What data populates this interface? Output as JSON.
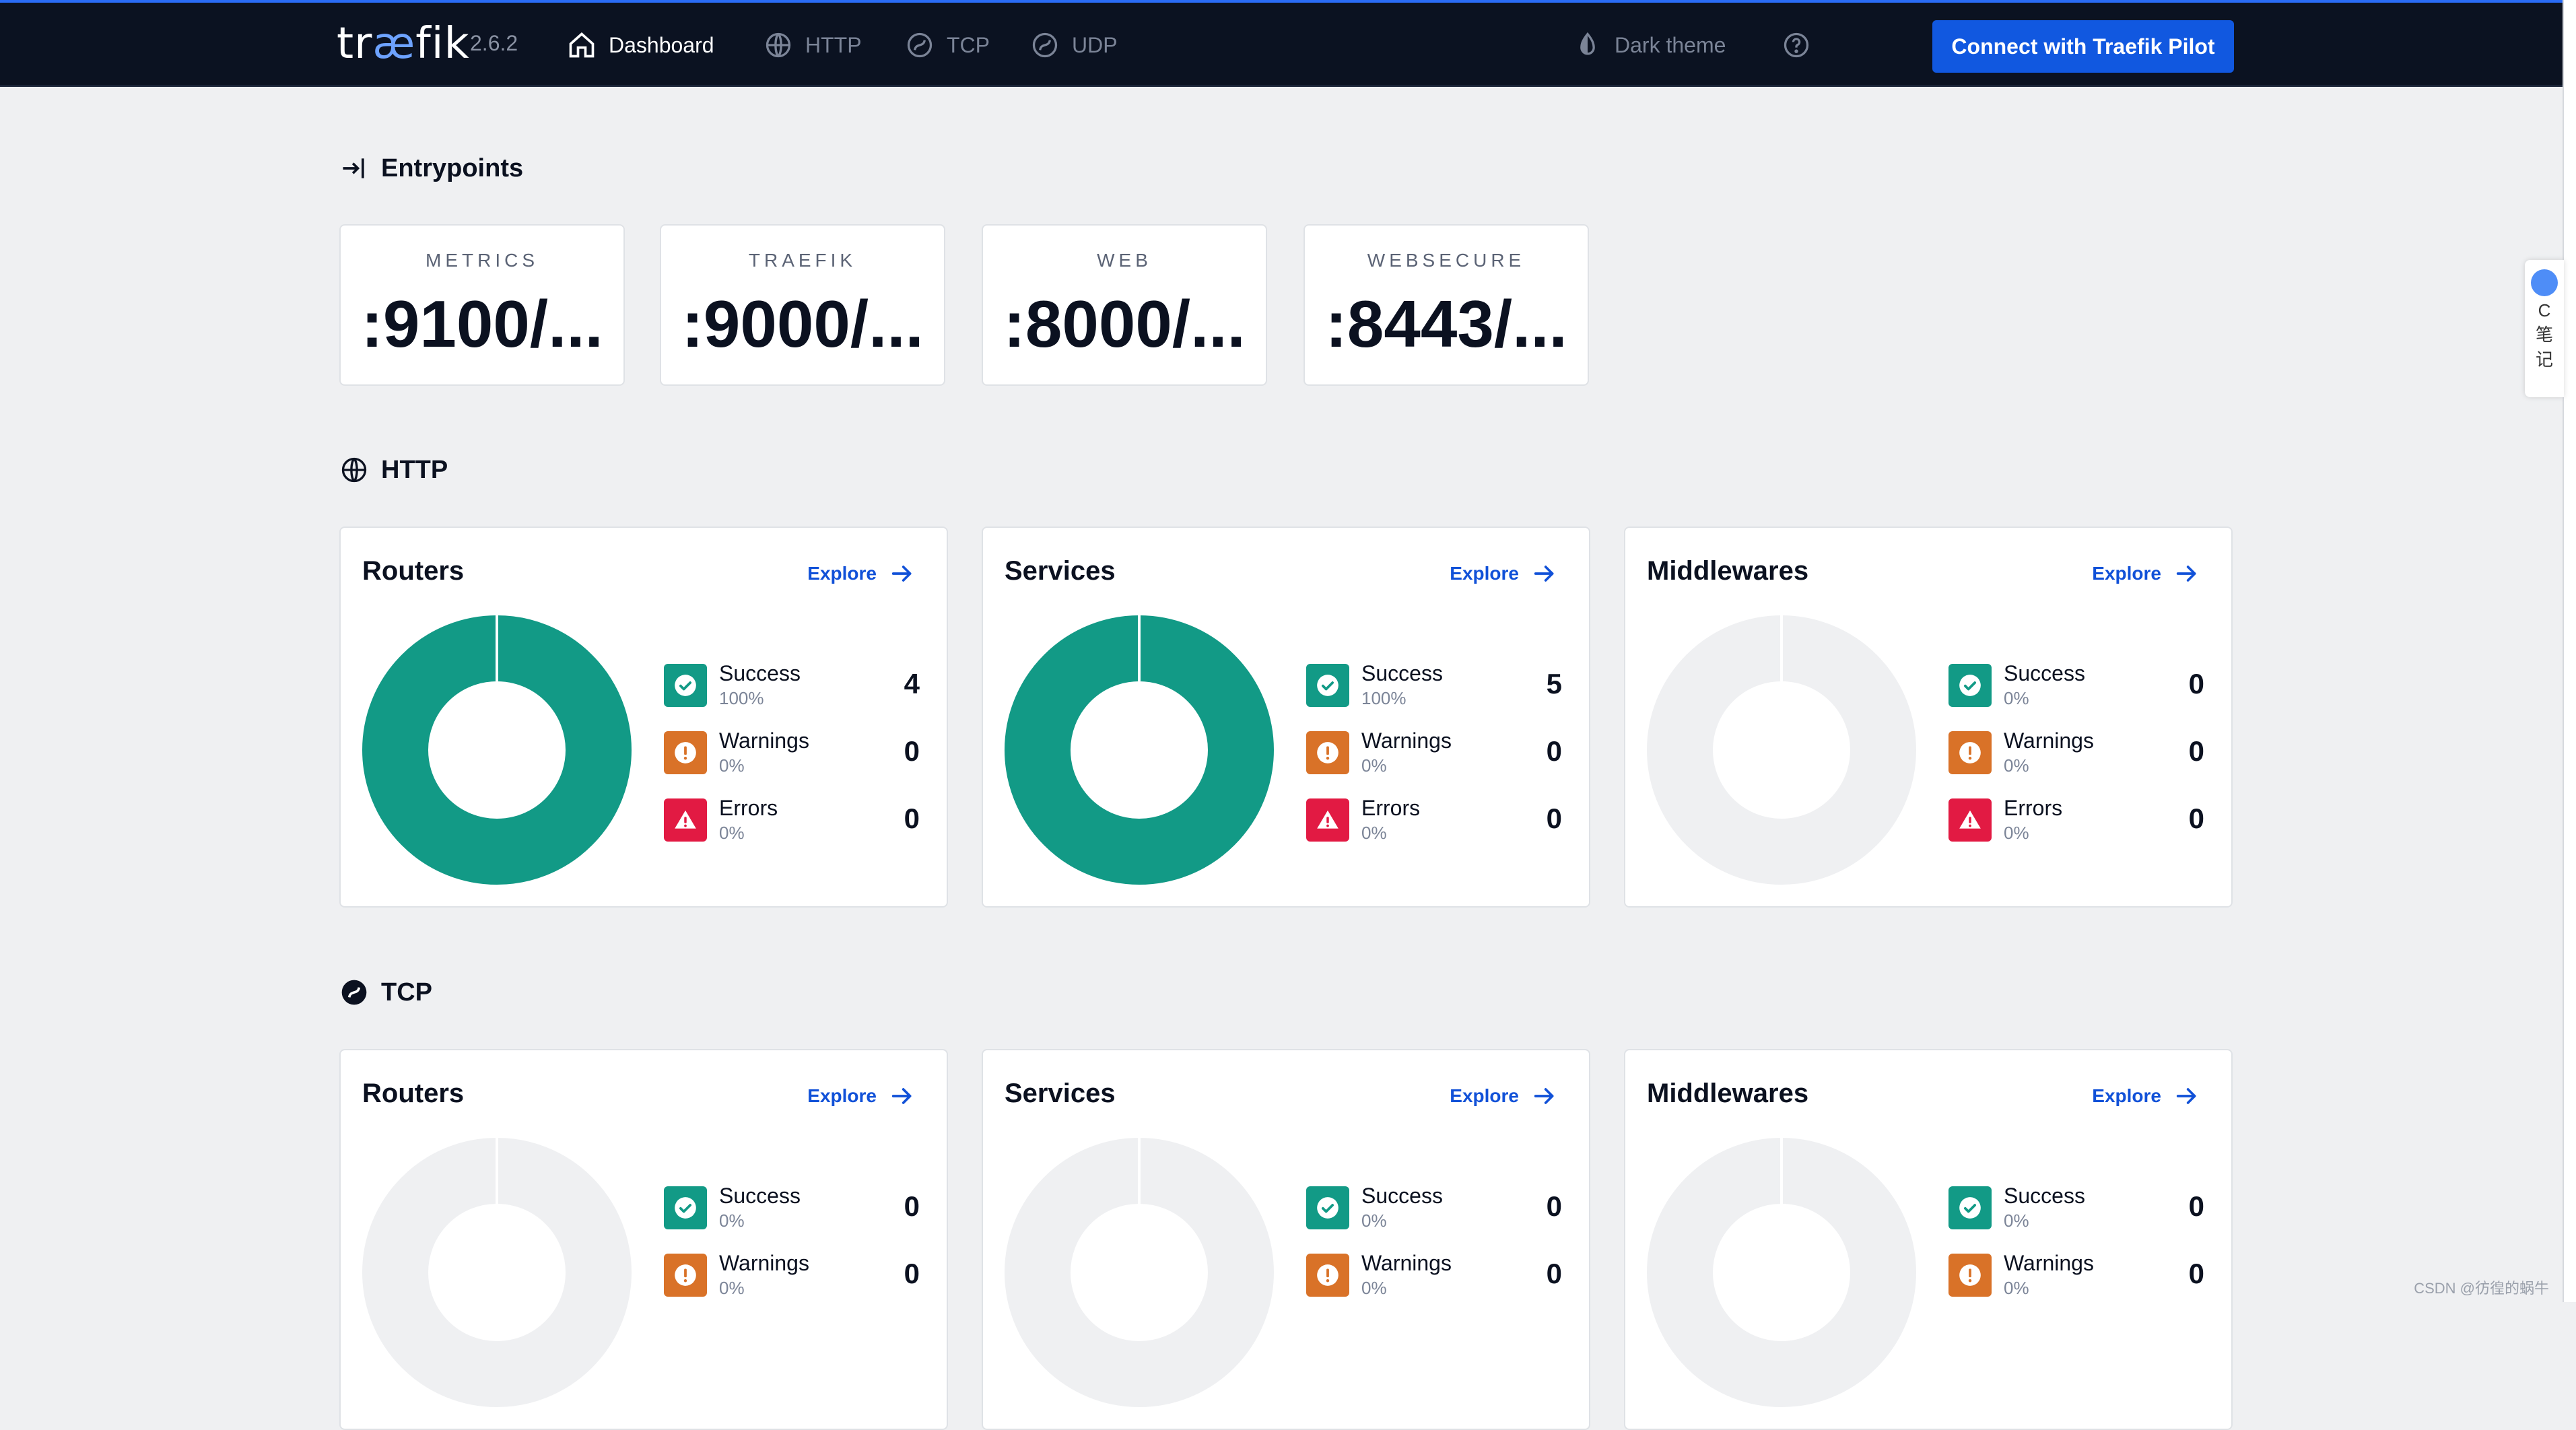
{
  "colors": {
    "success": "#129a86",
    "warning": "#d97228",
    "error": "#e21a43",
    "accent": "#1158e0",
    "empty": "#eff0f2"
  },
  "header": {
    "logo_prefix": "tr",
    "logo_ae": "æ",
    "logo_suffix": "fik",
    "version": "2.6.2",
    "nav": [
      {
        "label": "Dashboard",
        "icon": "home-icon"
      },
      {
        "label": "HTTP",
        "icon": "globe-icon"
      },
      {
        "label": "TCP",
        "icon": "tcp-icon"
      },
      {
        "label": "UDP",
        "icon": "udp-icon"
      }
    ],
    "theme_label": "Dark theme",
    "pilot_button": "Connect with Traefik Pilot"
  },
  "entrypoints": {
    "title": "Entrypoints",
    "items": [
      {
        "name": "METRICS",
        "address": ":9100/..."
      },
      {
        "name": "TRAEFIK",
        "address": ":9000/..."
      },
      {
        "name": "WEB",
        "address": ":8000/..."
      },
      {
        "name": "WEBSECURE",
        "address": ":8443/..."
      }
    ]
  },
  "explore_label": "Explore",
  "stat_labels": {
    "success": "Success",
    "warnings": "Warnings",
    "errors": "Errors"
  },
  "http": {
    "title": "HTTP",
    "cards": [
      {
        "title": "Routers",
        "success": 4,
        "success_pct": "100%",
        "warnings": 0,
        "warnings_pct": "0%",
        "errors": 0,
        "errors_pct": "0%"
      },
      {
        "title": "Services",
        "success": 5,
        "success_pct": "100%",
        "warnings": 0,
        "warnings_pct": "0%",
        "errors": 0,
        "errors_pct": "0%"
      },
      {
        "title": "Middlewares",
        "success": 0,
        "success_pct": "0%",
        "warnings": 0,
        "warnings_pct": "0%",
        "errors": 0,
        "errors_pct": "0%"
      }
    ]
  },
  "tcp": {
    "title": "TCP",
    "cards": [
      {
        "title": "Routers",
        "success": 0,
        "success_pct": "0%",
        "warnings": 0,
        "warnings_pct": "0%"
      },
      {
        "title": "Services",
        "success": 0,
        "success_pct": "0%",
        "warnings": 0,
        "warnings_pct": "0%"
      },
      {
        "title": "Middlewares",
        "success": 0,
        "success_pct": "0%",
        "warnings": 0,
        "warnings_pct": "0%"
      }
    ]
  },
  "side_widget": {
    "letter": "C",
    "text1": "笔",
    "text2": "记"
  },
  "watermark": "CSDN @彷徨的蜗牛"
}
